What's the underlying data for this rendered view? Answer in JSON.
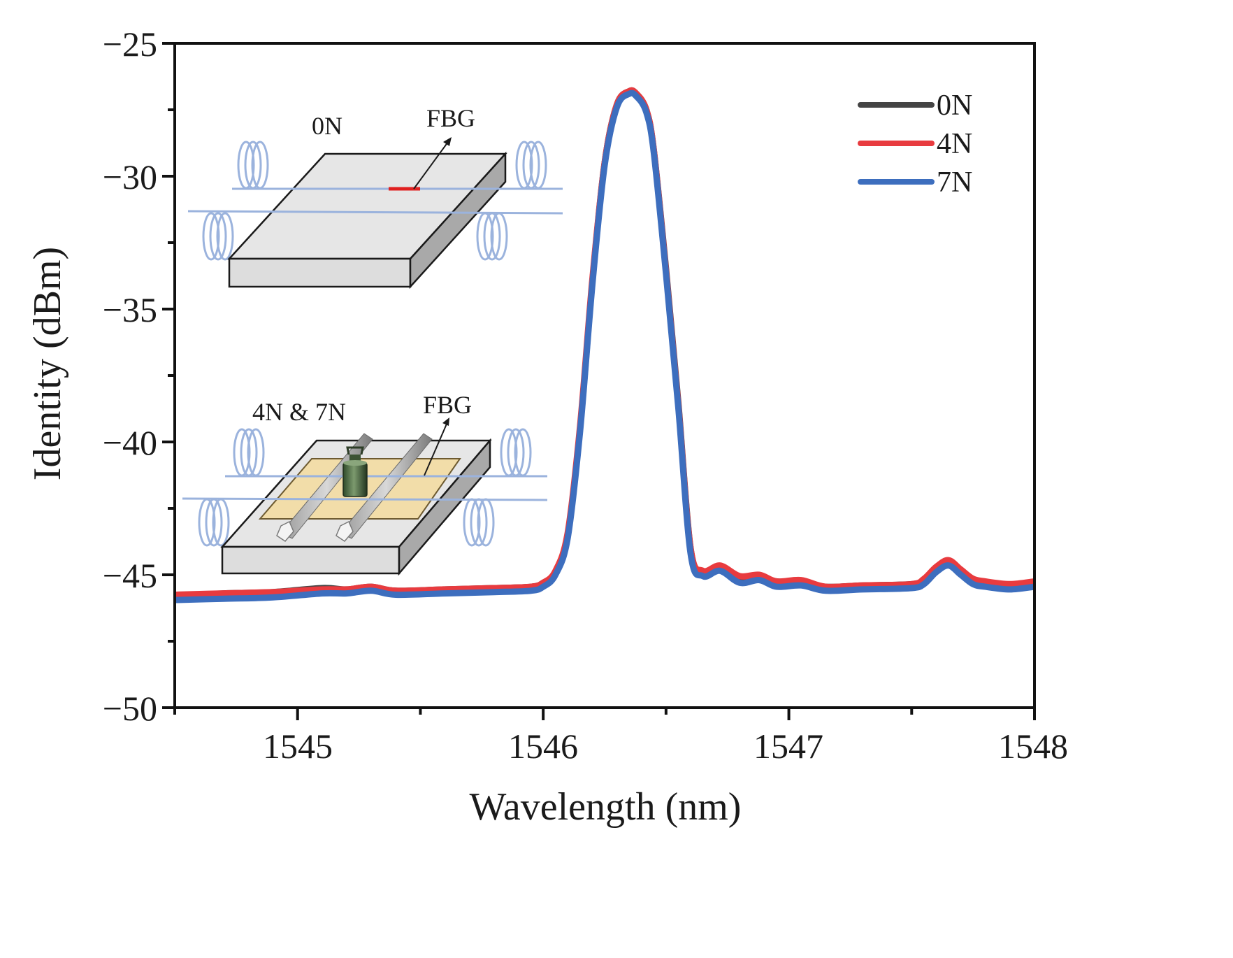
{
  "chart_data": {
    "type": "line",
    "title": "",
    "xlabel": "Wavelength (nm)",
    "ylabel": "Identity (dBm)",
    "xlim": [
      1544.5,
      1548
    ],
    "ylim": [
      -50,
      -25
    ],
    "xticks": [
      1545,
      1546,
      1547,
      1548
    ],
    "yticks": [
      -50,
      -45,
      -40,
      -35,
      -30,
      -25
    ],
    "xtick_labels": [
      "1545",
      "1546",
      "1547",
      "1548"
    ],
    "ytick_labels": [
      "−50",
      "−45",
      "−40",
      "−35",
      "−30",
      "−25"
    ],
    "grid": false,
    "legend_position": "top-right",
    "x": [
      1544.5,
      1544.7,
      1544.9,
      1545.1,
      1545.2,
      1545.3,
      1545.4,
      1545.6,
      1545.8,
      1545.95,
      1546.0,
      1546.05,
      1546.1,
      1546.15,
      1546.2,
      1546.25,
      1546.3,
      1546.35,
      1546.38,
      1546.42,
      1546.45,
      1546.5,
      1546.55,
      1546.6,
      1546.65,
      1546.72,
      1546.8,
      1546.88,
      1546.95,
      1547.05,
      1547.15,
      1547.3,
      1547.5,
      1547.55,
      1547.6,
      1547.65,
      1547.7,
      1547.75,
      1547.8,
      1547.9,
      1548.0
    ],
    "series": [
      {
        "name": "0N",
        "color": "#444444",
        "values": [
          -45.8,
          -45.7,
          -45.65,
          -45.5,
          -45.55,
          -45.45,
          -45.6,
          -45.55,
          -45.5,
          -45.45,
          -45.3,
          -44.9,
          -43.5,
          -39.5,
          -34.0,
          -29.5,
          -27.3,
          -26.8,
          -26.9,
          -27.5,
          -29.0,
          -33.5,
          -38.5,
          -44.0,
          -44.9,
          -44.7,
          -45.1,
          -45.05,
          -45.25,
          -45.25,
          -45.45,
          -45.4,
          -45.35,
          -45.2,
          -44.75,
          -44.5,
          -44.85,
          -45.2,
          -45.3,
          -45.4,
          -45.3
        ]
      },
      {
        "name": "4N",
        "color": "#e83b3f",
        "values": [
          -45.75,
          -45.7,
          -45.65,
          -45.55,
          -45.55,
          -45.45,
          -45.6,
          -45.55,
          -45.5,
          -45.45,
          -45.3,
          -44.85,
          -43.4,
          -39.4,
          -33.9,
          -29.5,
          -27.3,
          -26.8,
          -26.9,
          -27.5,
          -29.0,
          -33.6,
          -38.6,
          -44.0,
          -44.85,
          -44.65,
          -45.05,
          -45.0,
          -45.25,
          -45.2,
          -45.45,
          -45.4,
          -45.35,
          -45.15,
          -44.7,
          -44.45,
          -44.8,
          -45.15,
          -45.25,
          -45.35,
          -45.25
        ]
      },
      {
        "name": "7N",
        "color": "#3d6ebe",
        "values": [
          -45.95,
          -45.9,
          -45.85,
          -45.7,
          -45.7,
          -45.6,
          -45.75,
          -45.7,
          -45.65,
          -45.6,
          -45.45,
          -45.0,
          -43.6,
          -39.6,
          -34.1,
          -29.6,
          -27.4,
          -26.9,
          -27.0,
          -27.6,
          -29.1,
          -33.7,
          -38.7,
          -44.2,
          -45.05,
          -44.85,
          -45.3,
          -45.2,
          -45.45,
          -45.4,
          -45.6,
          -45.55,
          -45.5,
          -45.35,
          -44.9,
          -44.65,
          -45.0,
          -45.35,
          -45.45,
          -45.55,
          -45.45
        ]
      }
    ],
    "insets": {
      "top_load_label": "0N",
      "top_fbg_label": "FBG",
      "bottom_load_label": "4N & 7N",
      "bottom_fbg_label": "FBG"
    }
  }
}
